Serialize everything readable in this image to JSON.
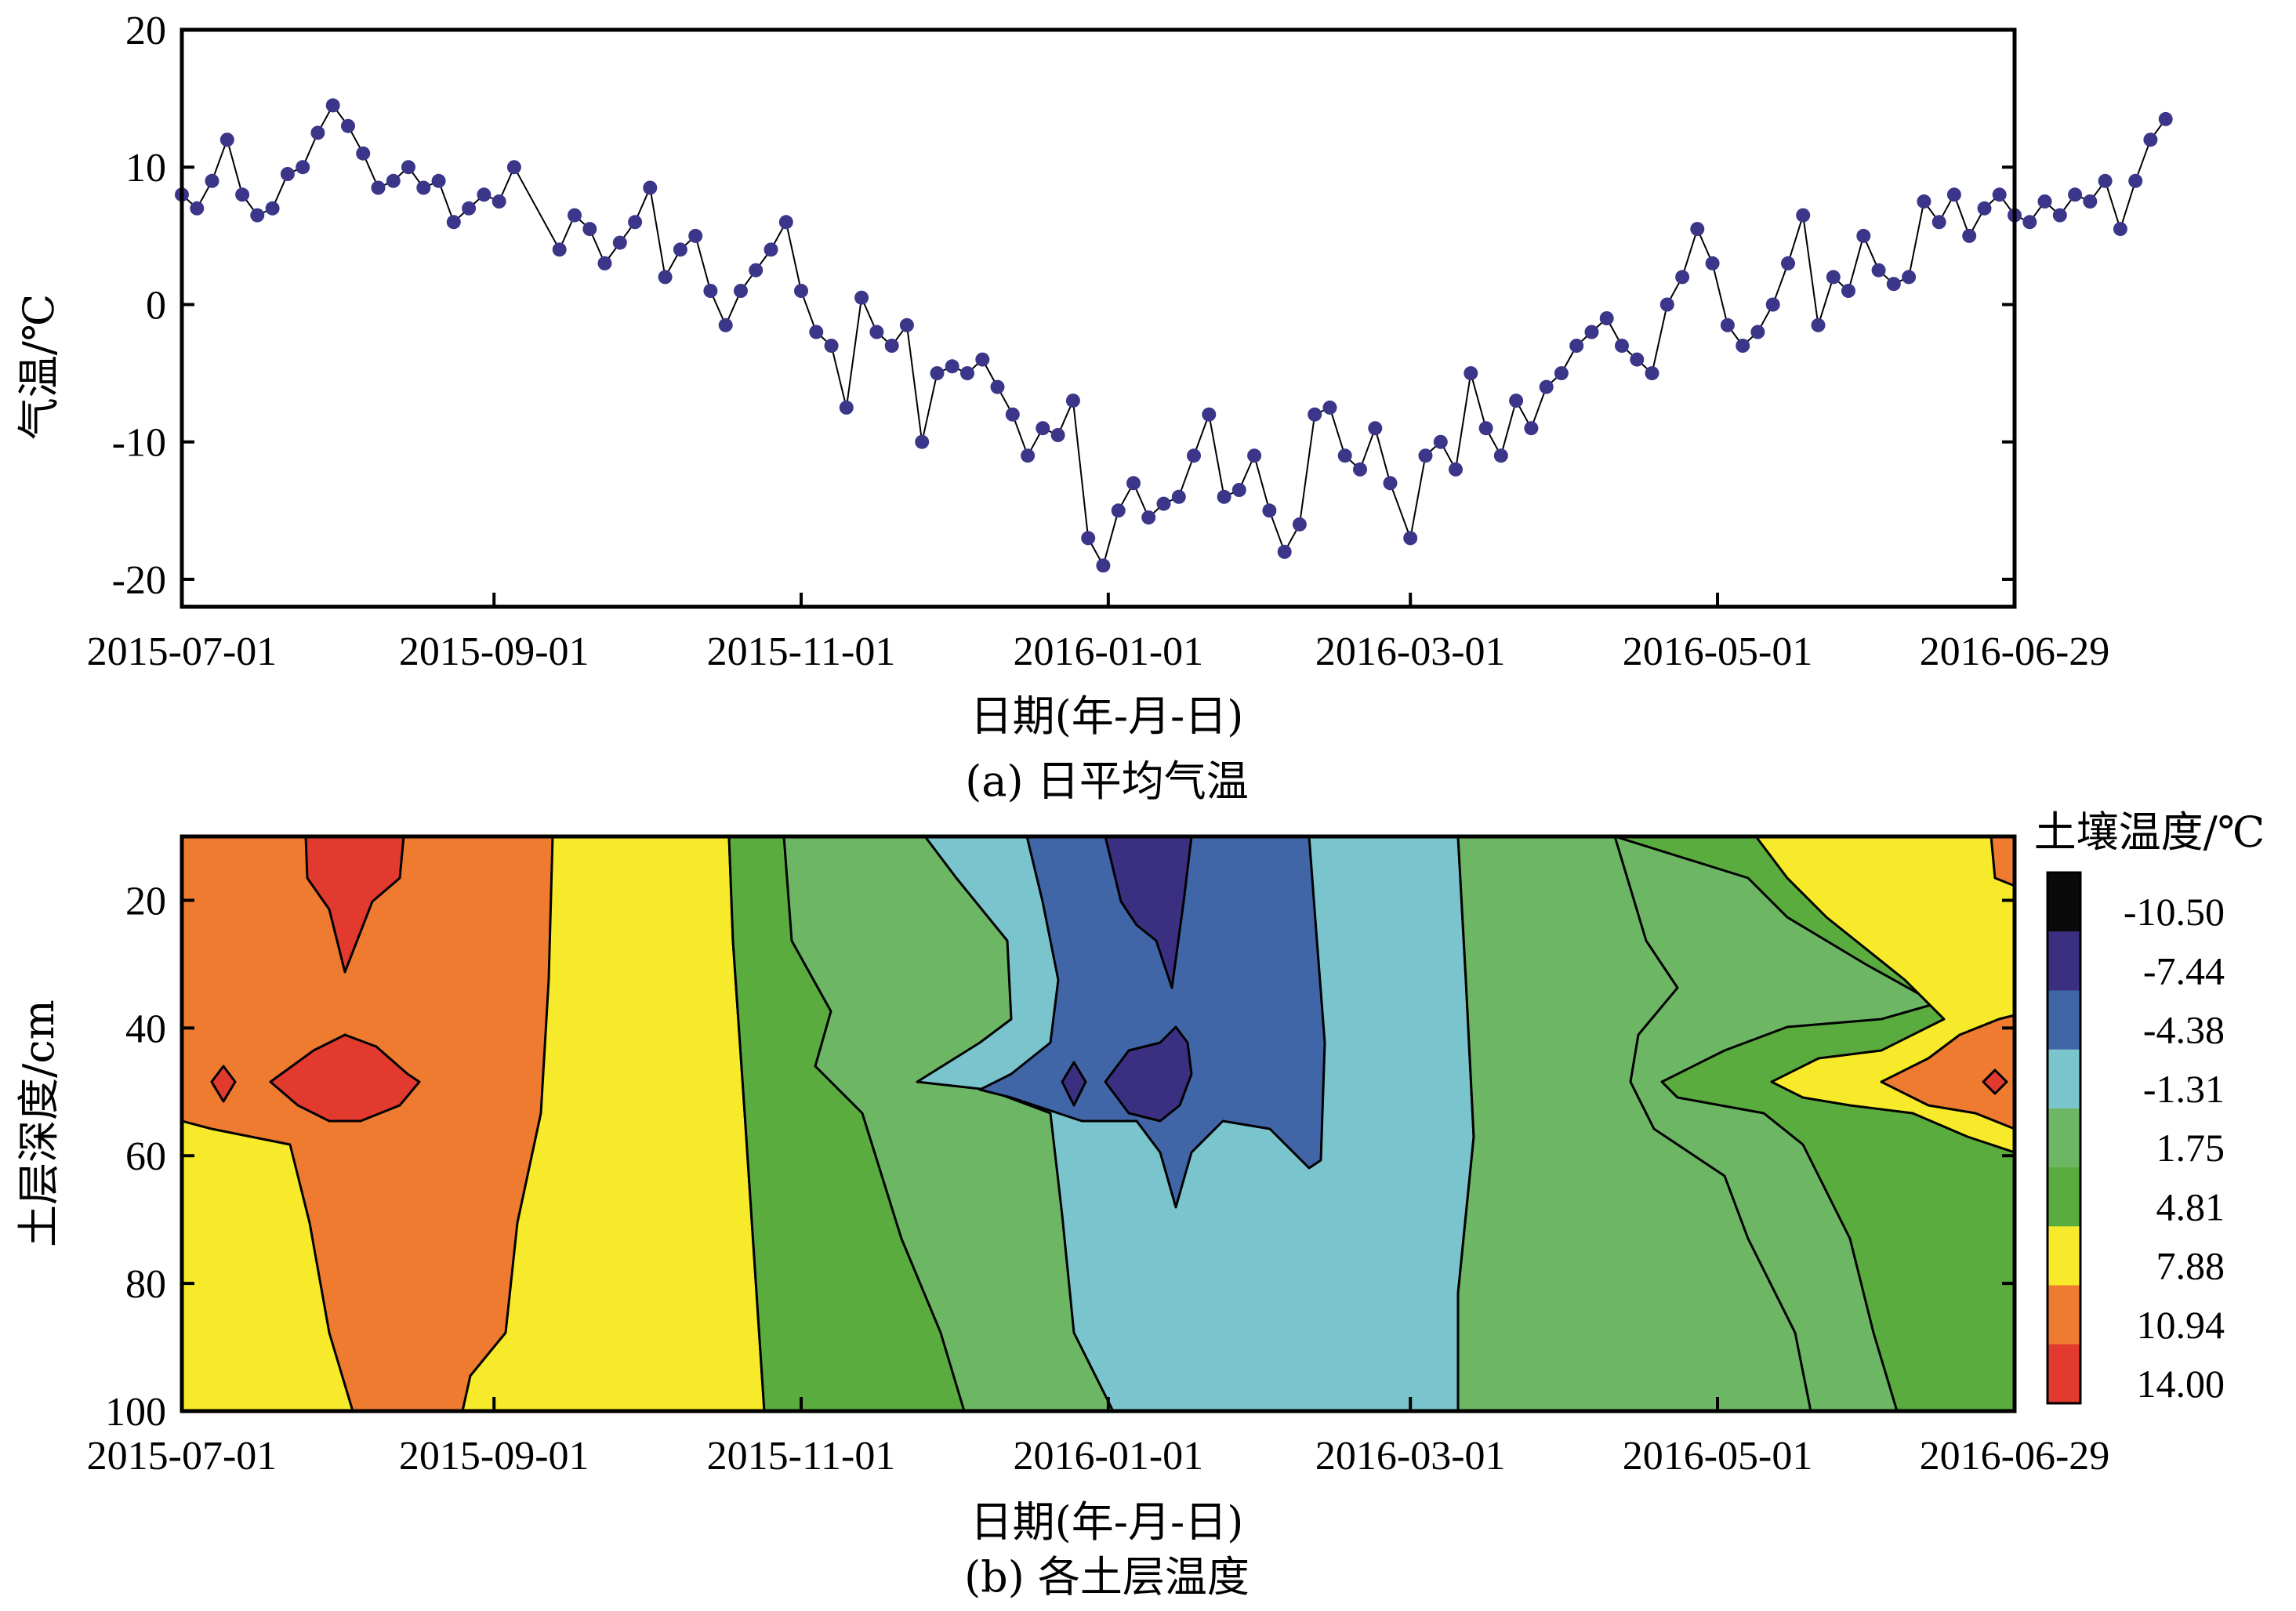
{
  "chart_data": [
    {
      "type": "scatter",
      "ylabel": "气温/℃",
      "xlabel": "日期(年-月-日)",
      "caption": "(a) 日平均气温",
      "x_start": "2015-07-01",
      "x_end": "2016-06-29",
      "x_ticks": [
        "2015-07-01",
        "2015-09-01",
        "2015-11-01",
        "2016-01-01",
        "2016-03-01",
        "2016-05-01",
        "2016-06-29"
      ],
      "ylim": [
        -22,
        20
      ],
      "y_ticks": [
        "20",
        "10",
        "0",
        "-10",
        "-20"
      ],
      "marker_color": "#3b3689",
      "line_color": "#000000",
      "series": [
        {
          "points": [
            [
              "2015-07-01",
              8
            ],
            [
              "2015-07-04",
              7
            ],
            [
              "2015-07-07",
              9
            ],
            [
              "2015-07-10",
              12
            ],
            [
              "2015-07-13",
              8
            ],
            [
              "2015-07-16",
              6.5
            ],
            [
              "2015-07-19",
              7
            ],
            [
              "2015-07-22",
              9.5
            ],
            [
              "2015-07-25",
              10
            ],
            [
              "2015-07-28",
              12.5
            ],
            [
              "2015-07-31",
              14.5
            ],
            [
              "2015-08-03",
              13
            ],
            [
              "2015-08-06",
              11
            ],
            [
              "2015-08-09",
              8.5
            ],
            [
              "2015-08-12",
              9
            ],
            [
              "2015-08-15",
              10
            ],
            [
              "2015-08-18",
              8.5
            ],
            [
              "2015-08-21",
              9
            ],
            [
              "2015-08-24",
              6
            ],
            [
              "2015-08-27",
              7
            ],
            [
              "2015-08-30",
              8
            ],
            [
              "2015-09-02",
              7.5
            ],
            [
              "2015-09-05",
              10
            ],
            [
              "2015-09-14",
              4
            ],
            [
              "2015-09-17",
              6.5
            ],
            [
              "2015-09-20",
              5.5
            ],
            [
              "2015-09-23",
              3
            ],
            [
              "2015-09-26",
              4.5
            ],
            [
              "2015-09-29",
              6
            ],
            [
              "2015-10-02",
              8.5
            ],
            [
              "2015-10-05",
              2
            ],
            [
              "2015-10-08",
              4
            ],
            [
              "2015-10-11",
              5
            ],
            [
              "2015-10-14",
              1
            ],
            [
              "2015-10-17",
              -1.5
            ],
            [
              "2015-10-20",
              1
            ],
            [
              "2015-10-23",
              2.5
            ],
            [
              "2015-10-26",
              4
            ],
            [
              "2015-10-29",
              6
            ],
            [
              "2015-11-01",
              1
            ],
            [
              "2015-11-04",
              -2
            ],
            [
              "2015-11-07",
              -3
            ],
            [
              "2015-11-10",
              -7.5
            ],
            [
              "2015-11-13",
              0.5
            ],
            [
              "2015-11-16",
              -2
            ],
            [
              "2015-11-19",
              -3
            ],
            [
              "2015-11-22",
              -1.5
            ],
            [
              "2015-11-25",
              -10
            ],
            [
              "2015-11-28",
              -5
            ],
            [
              "2015-12-01",
              -4.5
            ],
            [
              "2015-12-04",
              -5
            ],
            [
              "2015-12-07",
              -4
            ],
            [
              "2015-12-10",
              -6
            ],
            [
              "2015-12-13",
              -8
            ],
            [
              "2015-12-16",
              -11
            ],
            [
              "2015-12-19",
              -9
            ],
            [
              "2015-12-22",
              -9.5
            ],
            [
              "2015-12-25",
              -7
            ],
            [
              "2015-12-28",
              -17
            ],
            [
              "2015-12-31",
              -19
            ],
            [
              "2016-01-03",
              -15
            ],
            [
              "2016-01-06",
              -13
            ],
            [
              "2016-01-09",
              -15.5
            ],
            [
              "2016-01-12",
              -14.5
            ],
            [
              "2016-01-15",
              -14
            ],
            [
              "2016-01-18",
              -11
            ],
            [
              "2016-01-21",
              -8
            ],
            [
              "2016-01-24",
              -14
            ],
            [
              "2016-01-27",
              -13.5
            ],
            [
              "2016-01-30",
              -11
            ],
            [
              "2016-02-02",
              -15
            ],
            [
              "2016-02-05",
              -18
            ],
            [
              "2016-02-08",
              -16
            ],
            [
              "2016-02-11",
              -8
            ],
            [
              "2016-02-14",
              -7.5
            ],
            [
              "2016-02-17",
              -11
            ],
            [
              "2016-02-20",
              -12
            ],
            [
              "2016-02-23",
              -9
            ],
            [
              "2016-02-26",
              -13
            ],
            [
              "2016-03-01",
              -17
            ],
            [
              "2016-03-04",
              -11
            ],
            [
              "2016-03-07",
              -10
            ],
            [
              "2016-03-10",
              -12
            ],
            [
              "2016-03-13",
              -5
            ],
            [
              "2016-03-16",
              -9
            ],
            [
              "2016-03-19",
              -11
            ],
            [
              "2016-03-22",
              -7
            ],
            [
              "2016-03-25",
              -9
            ],
            [
              "2016-03-28",
              -6
            ],
            [
              "2016-03-31",
              -5
            ],
            [
              "2016-04-03",
              -3
            ],
            [
              "2016-04-06",
              -2
            ],
            [
              "2016-04-09",
              -1
            ],
            [
              "2016-04-12",
              -3
            ],
            [
              "2016-04-15",
              -4
            ],
            [
              "2016-04-18",
              -5
            ],
            [
              "2016-04-21",
              0
            ],
            [
              "2016-04-24",
              2
            ],
            [
              "2016-04-27",
              5.5
            ],
            [
              "2016-04-30",
              3
            ],
            [
              "2016-05-03",
              -1.5
            ],
            [
              "2016-05-06",
              -3
            ],
            [
              "2016-05-09",
              -2
            ],
            [
              "2016-05-12",
              0
            ],
            [
              "2016-05-15",
              3
            ],
            [
              "2016-05-18",
              6.5
            ],
            [
              "2016-05-21",
              -1.5
            ],
            [
              "2016-05-24",
              2
            ],
            [
              "2016-05-27",
              1
            ],
            [
              "2016-05-30",
              5
            ],
            [
              "2016-06-02",
              2.5
            ],
            [
              "2016-06-05",
              1.5
            ],
            [
              "2016-06-08",
              2
            ],
            [
              "2016-06-11",
              7.5
            ],
            [
              "2016-06-14",
              6
            ],
            [
              "2016-06-17",
              8
            ],
            [
              "2016-06-20",
              5
            ],
            [
              "2016-06-23",
              7
            ],
            [
              "2016-06-26",
              8
            ],
            [
              "2016-06-29",
              6.5
            ],
            [
              "2016-07-02",
              6
            ],
            [
              "2016-07-05",
              7.5
            ],
            [
              "2016-07-08",
              6.5
            ],
            [
              "2016-07-11",
              8
            ],
            [
              "2016-07-14",
              7.5
            ],
            [
              "2016-07-17",
              9
            ],
            [
              "2016-07-20",
              5.5
            ],
            [
              "2016-07-23",
              9
            ],
            [
              "2016-07-26",
              12
            ],
            [
              "2016-07-29",
              13.5
            ]
          ]
        }
      ]
    },
    {
      "type": "heatmap",
      "ylabel": "土层深度/cm",
      "xlabel": "日期(年-月-日)",
      "caption": "(b) 各土层温度",
      "x_ticks": [
        "2015-07-01",
        "2015-09-01",
        "2015-11-01",
        "2016-01-01",
        "2016-03-01",
        "2016-05-01",
        "2016-06-29"
      ],
      "ylim": [
        10,
        100
      ],
      "y_ticks": [
        "20",
        "40",
        "60",
        "80",
        "100"
      ],
      "colorbar": {
        "title": "土壤温度/℃",
        "levels": [
          "-10.50",
          "-7.44",
          "-4.38",
          "-1.31",
          "1.75",
          "4.81",
          "7.88",
          "10.94",
          "14.00"
        ],
        "colors": [
          "#0a0a0a",
          "#3b2f82",
          "#4166a8",
          "#7ac4ce",
          "#6db664",
          "#5aac3f",
          "#f7ea2a",
          "#ee7b30",
          "#e23a2e"
        ]
      }
    }
  ]
}
